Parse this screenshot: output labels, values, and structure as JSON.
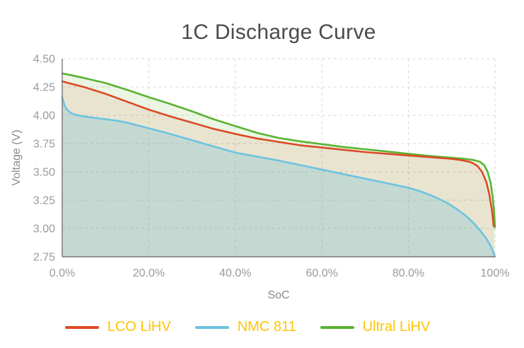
{
  "title": "1C Discharge Curve",
  "legend": {
    "text_color": "#ffc400",
    "items": [
      {
        "label": "LCO LiHV",
        "color": "#dc4a26"
      },
      {
        "label": "NMC 811",
        "color": "#6cc3e0"
      },
      {
        "label": "Ultral LiHV",
        "color": "#5cb232"
      }
    ]
  },
  "colors": {
    "title": "#4a4a4a",
    "axis_line": "#777777",
    "grid_line": "#d8d8d8",
    "tick_label": "#9a9a9a",
    "axis_title": "#8a8a8a",
    "background": "#ffffff"
  },
  "chart_data": {
    "type": "area",
    "title": "1C Discharge Curve",
    "xlabel": "SoC",
    "ylabel": "Voltage (V)",
    "xlim": [
      0,
      100
    ],
    "ylim": [
      2.75,
      4.5
    ],
    "grid": "dashed",
    "legend_position": "bottom",
    "x_tick_values": [
      0,
      20,
      40,
      60,
      80,
      100
    ],
    "x_tick_labels": [
      "0.0%",
      "20.0%",
      "40.0%",
      "60.0%",
      "80.0%",
      "100%"
    ],
    "y_tick_values": [
      4.5,
      4.25,
      4.0,
      3.75,
      3.5,
      3.25,
      3.0,
      2.75
    ],
    "y_tick_labels": [
      "4.50",
      "4.25",
      "4.00",
      "3.75",
      "3.50",
      "3.25",
      "3.00",
      "2.75"
    ],
    "series": [
      {
        "name": "Ultral LiHV",
        "color": "#5cb232",
        "fill": "rgba(92,178,50,0.13)",
        "points": [
          [
            0,
            4.37
          ],
          [
            2,
            4.355
          ],
          [
            5,
            4.33
          ],
          [
            10,
            4.285
          ],
          [
            15,
            4.225
          ],
          [
            20,
            4.16
          ],
          [
            25,
            4.1
          ],
          [
            30,
            4.035
          ],
          [
            35,
            3.965
          ],
          [
            40,
            3.905
          ],
          [
            45,
            3.845
          ],
          [
            50,
            3.8
          ],
          [
            55,
            3.77
          ],
          [
            60,
            3.745
          ],
          [
            65,
            3.72
          ],
          [
            70,
            3.7
          ],
          [
            75,
            3.68
          ],
          [
            80,
            3.66
          ],
          [
            85,
            3.64
          ],
          [
            90,
            3.625
          ],
          [
            93,
            3.615
          ],
          [
            95,
            3.605
          ],
          [
            96.5,
            3.59
          ],
          [
            97.5,
            3.56
          ],
          [
            98.3,
            3.5
          ],
          [
            99,
            3.4
          ],
          [
            99.5,
            3.27
          ],
          [
            99.8,
            3.14
          ],
          [
            100,
            3.01
          ]
        ]
      },
      {
        "name": "LCO LiHV",
        "color": "#dc4a26",
        "fill": "rgba(220,74,38,0.10)",
        "points": [
          [
            0,
            4.3
          ],
          [
            2,
            4.28
          ],
          [
            5,
            4.25
          ],
          [
            10,
            4.19
          ],
          [
            15,
            4.12
          ],
          [
            20,
            4.05
          ],
          [
            25,
            3.99
          ],
          [
            30,
            3.935
          ],
          [
            35,
            3.88
          ],
          [
            40,
            3.835
          ],
          [
            45,
            3.795
          ],
          [
            50,
            3.765
          ],
          [
            55,
            3.735
          ],
          [
            60,
            3.715
          ],
          [
            65,
            3.695
          ],
          [
            70,
            3.675
          ],
          [
            75,
            3.66
          ],
          [
            80,
            3.645
          ],
          [
            85,
            3.63
          ],
          [
            90,
            3.615
          ],
          [
            92,
            3.605
          ],
          [
            94,
            3.59
          ],
          [
            95,
            3.575
          ],
          [
            96,
            3.55
          ],
          [
            97,
            3.5
          ],
          [
            98,
            3.41
          ],
          [
            98.7,
            3.3
          ],
          [
            99.3,
            3.16
          ],
          [
            99.7,
            3.02
          ]
        ]
      },
      {
        "name": "NMC 811",
        "color": "#6cc3e0",
        "fill": "rgba(120,195,215,0.32)",
        "points": [
          [
            0,
            4.16
          ],
          [
            0.5,
            4.09
          ],
          [
            1,
            4.055
          ],
          [
            2,
            4.02
          ],
          [
            3,
            4.005
          ],
          [
            5,
            3.99
          ],
          [
            7,
            3.98
          ],
          [
            10,
            3.965
          ],
          [
            13,
            3.95
          ],
          [
            15,
            3.935
          ],
          [
            20,
            3.885
          ],
          [
            25,
            3.835
          ],
          [
            30,
            3.78
          ],
          [
            35,
            3.725
          ],
          [
            40,
            3.67
          ],
          [
            45,
            3.635
          ],
          [
            50,
            3.6
          ],
          [
            55,
            3.56
          ],
          [
            60,
            3.52
          ],
          [
            65,
            3.48
          ],
          [
            70,
            3.44
          ],
          [
            75,
            3.4
          ],
          [
            80,
            3.36
          ],
          [
            83,
            3.325
          ],
          [
            86,
            3.28
          ],
          [
            89,
            3.225
          ],
          [
            91,
            3.175
          ],
          [
            93,
            3.12
          ],
          [
            95,
            3.05
          ],
          [
            96.5,
            2.985
          ],
          [
            98,
            2.91
          ],
          [
            99,
            2.845
          ],
          [
            99.6,
            2.79
          ],
          [
            100,
            2.75
          ]
        ]
      }
    ]
  }
}
